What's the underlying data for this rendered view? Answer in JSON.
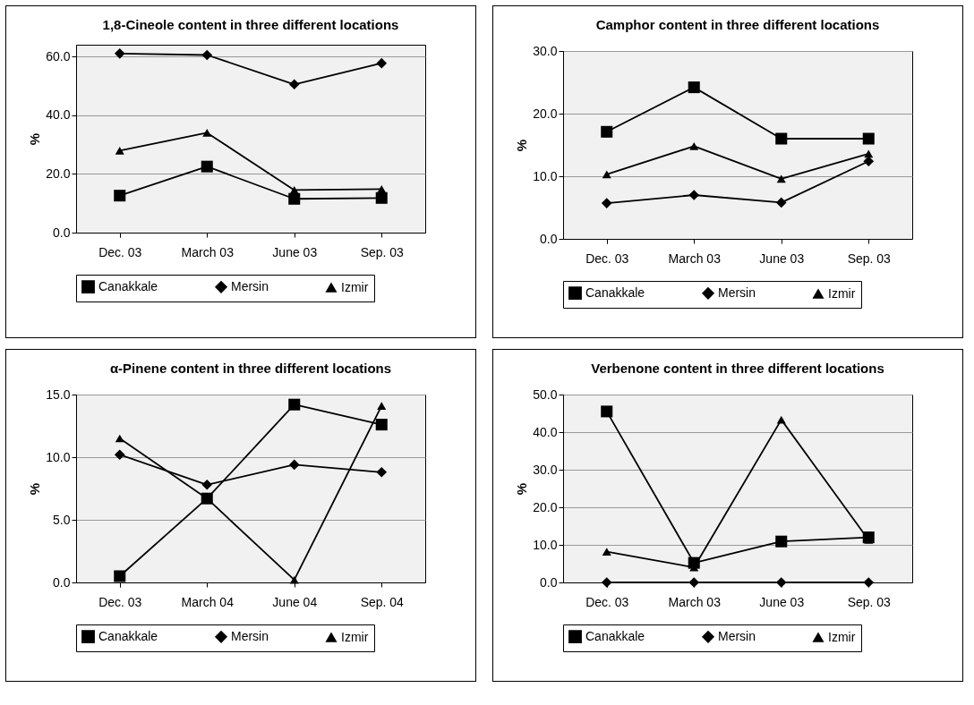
{
  "chart_data": [
    {
      "type": "line",
      "title": "1,8-Cineole content in three different locations",
      "ylabel": "%",
      "categories": [
        "Dec. 03",
        "March 03",
        "June 03",
        "Sep. 03"
      ],
      "ylim": [
        0,
        64
      ],
      "yticks": [
        {
          "value": 0,
          "label": "0.0"
        },
        {
          "value": 20,
          "label": "20.0"
        },
        {
          "value": 40,
          "label": "40.0"
        },
        {
          "value": 60,
          "label": "60.0"
        }
      ],
      "grid": "y",
      "legend": "bottom",
      "series": [
        {
          "name": "Canakkale",
          "color": "#000000",
          "marker": "square",
          "values": [
            12.6,
            22.5,
            11.5,
            11.8
          ]
        },
        {
          "name": "Mersin",
          "color": "#000000",
          "marker": "diamond",
          "values": [
            61.0,
            60.5,
            50.5,
            57.7
          ]
        },
        {
          "name": "Izmir",
          "color": "#000000",
          "marker": "triangle",
          "values": [
            27.9,
            34.0,
            14.5,
            14.8
          ]
        }
      ]
    },
    {
      "type": "line",
      "title": "Camphor content in three different locations",
      "ylabel": "%",
      "categories": [
        "Dec. 03",
        "March 03",
        "June 03",
        "Sep. 03"
      ],
      "ylim": [
        0,
        30
      ],
      "yticks": [
        {
          "value": 0,
          "label": "0.0"
        },
        {
          "value": 10,
          "label": "10.0"
        },
        {
          "value": 20,
          "label": "20.0"
        },
        {
          "value": 30,
          "label": "30.0"
        }
      ],
      "grid": "y",
      "legend": "bottom",
      "series": [
        {
          "name": "Canakkale",
          "color": "#000000",
          "marker": "square",
          "values": [
            17.1,
            24.2,
            16.0,
            16.0
          ]
        },
        {
          "name": "Mersin",
          "color": "#000000",
          "marker": "diamond",
          "values": [
            5.7,
            7.0,
            5.8,
            12.4
          ]
        },
        {
          "name": "Izmir",
          "color": "#000000",
          "marker": "triangle",
          "values": [
            10.3,
            14.8,
            9.6,
            13.6
          ]
        }
      ]
    },
    {
      "type": "line",
      "title": "α-Pinene content in three different locations",
      "ylabel": "%",
      "categories": [
        "Dec. 03",
        "March 04",
        "June 04",
        "Sep. 04"
      ],
      "ylim": [
        0,
        15
      ],
      "yticks": [
        {
          "value": 0,
          "label": "0.0"
        },
        {
          "value": 5,
          "label": "5.0"
        },
        {
          "value": 10,
          "label": "10.0"
        },
        {
          "value": 15,
          "label": "15.0"
        }
      ],
      "grid": "y",
      "legend": "bottom",
      "series": [
        {
          "name": "Canakkale",
          "color": "#000000",
          "marker": "square",
          "values": [
            0.5,
            6.7,
            14.2,
            12.6
          ]
        },
        {
          "name": "Mersin",
          "color": "#000000",
          "marker": "diamond",
          "values": [
            10.2,
            7.8,
            9.4,
            8.8
          ]
        },
        {
          "name": "Izmir",
          "color": "#000000",
          "marker": "triangle",
          "values": [
            11.5,
            6.7,
            0.2,
            14.1
          ]
        }
      ]
    },
    {
      "type": "line",
      "title": "Verbenone content in three different locations",
      "ylabel": "%",
      "categories": [
        "Dec. 03",
        "March 03",
        "June 03",
        "Sep. 03"
      ],
      "ylim": [
        0,
        50
      ],
      "yticks": [
        {
          "value": 0,
          "label": "0.0"
        },
        {
          "value": 10,
          "label": "10.0"
        },
        {
          "value": 20,
          "label": "20.0"
        },
        {
          "value": 30,
          "label": "30.0"
        },
        {
          "value": 40,
          "label": "40.0"
        },
        {
          "value": 50,
          "label": "50.0"
        }
      ],
      "grid": "y",
      "legend": "bottom",
      "series": [
        {
          "name": "Canakkale",
          "color": "#000000",
          "marker": "square",
          "values": [
            45.5,
            5.2,
            10.9,
            12.0
          ]
        },
        {
          "name": "Mersin",
          "color": "#000000",
          "marker": "diamond",
          "values": [
            0,
            0,
            0,
            0
          ]
        },
        {
          "name": "Izmir",
          "color": "#000000",
          "marker": "triangle",
          "values": [
            8.2,
            4.0,
            43.3,
            11.3
          ]
        }
      ]
    }
  ]
}
